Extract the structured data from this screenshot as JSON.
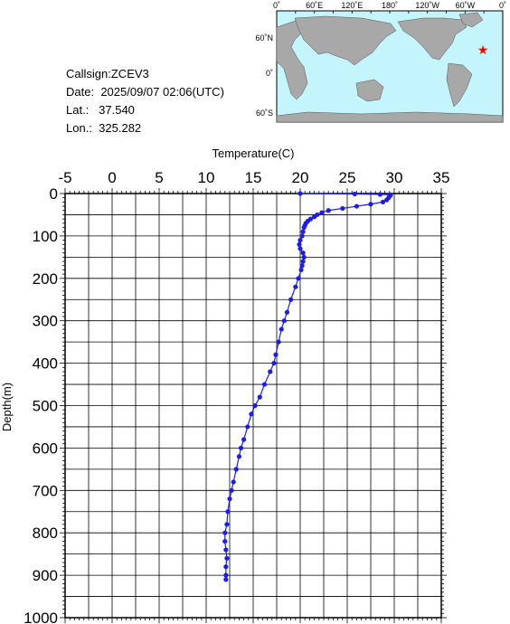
{
  "station": {
    "callsign_label": "Callsign:",
    "callsign": "ZCEV3",
    "date_label": "Date:",
    "date": "2025/09/07 02:06(UTC)",
    "lat_label": "Lat.:",
    "lat": "37.540",
    "lon_label": "Lon.:",
    "lon": "325.282"
  },
  "map": {
    "lon_labels": [
      "0˚",
      "60˚E",
      "120˚E",
      "180˚",
      "120˚W",
      "60˚W",
      "0˚"
    ],
    "lat_labels": [
      "60˚N",
      "0˚",
      "60˚S"
    ],
    "ocean_color": "#c4f4fc",
    "land_color": "#a8a8a8",
    "marker_color": "#ff0000",
    "marker_icon": "star-icon"
  },
  "chart_data": {
    "type": "line",
    "xlabel": "Temperature(C)",
    "ylabel": "Depth(m)",
    "xlim": [
      -5,
      35
    ],
    "ylim": [
      1000,
      0
    ],
    "x_ticks": [
      "-5",
      "0",
      "5",
      "10",
      "15",
      "20",
      "25",
      "30",
      "35"
    ],
    "y_ticks": [
      "0",
      "100",
      "200",
      "300",
      "400",
      "500",
      "600",
      "700",
      "800",
      "900",
      "1000"
    ],
    "series_color": "#1c1cf0",
    "grid": true,
    "series": [
      {
        "depth": [
          0,
          1,
          2,
          3,
          4,
          6,
          10,
          15,
          20,
          25,
          30,
          35,
          40,
          45,
          50,
          55,
          60,
          65,
          70,
          75,
          80,
          90,
          100,
          110,
          120,
          130,
          140,
          150,
          160,
          170,
          180,
          200,
          220,
          250,
          280,
          300,
          320,
          350,
          380,
          400,
          420,
          450,
          480,
          500,
          520,
          550,
          580,
          600,
          620,
          650,
          680,
          700,
          720,
          750,
          780,
          800,
          820,
          840,
          860,
          880,
          900,
          910
        ],
        "temperature": [
          20.0,
          25.8,
          28.5,
          29.6,
          29.6,
          29.5,
          29.4,
          29.2,
          28.8,
          27.5,
          26.0,
          24.5,
          23.0,
          22.3,
          21.8,
          21.5,
          21.1,
          20.8,
          20.6,
          20.5,
          20.4,
          20.3,
          20.2,
          20.0,
          19.9,
          20.0,
          20.3,
          20.4,
          20.3,
          20.2,
          20.1,
          19.8,
          19.5,
          19.0,
          18.6,
          18.3,
          18.0,
          17.7,
          17.4,
          17.2,
          16.8,
          16.2,
          15.7,
          15.2,
          14.8,
          14.4,
          14.0,
          13.7,
          13.5,
          13.2,
          12.9,
          12.7,
          12.5,
          12.3,
          12.2,
          12.0,
          12.0,
          12.1,
          12.2,
          12.1,
          12.1,
          12.1
        ]
      }
    ]
  }
}
